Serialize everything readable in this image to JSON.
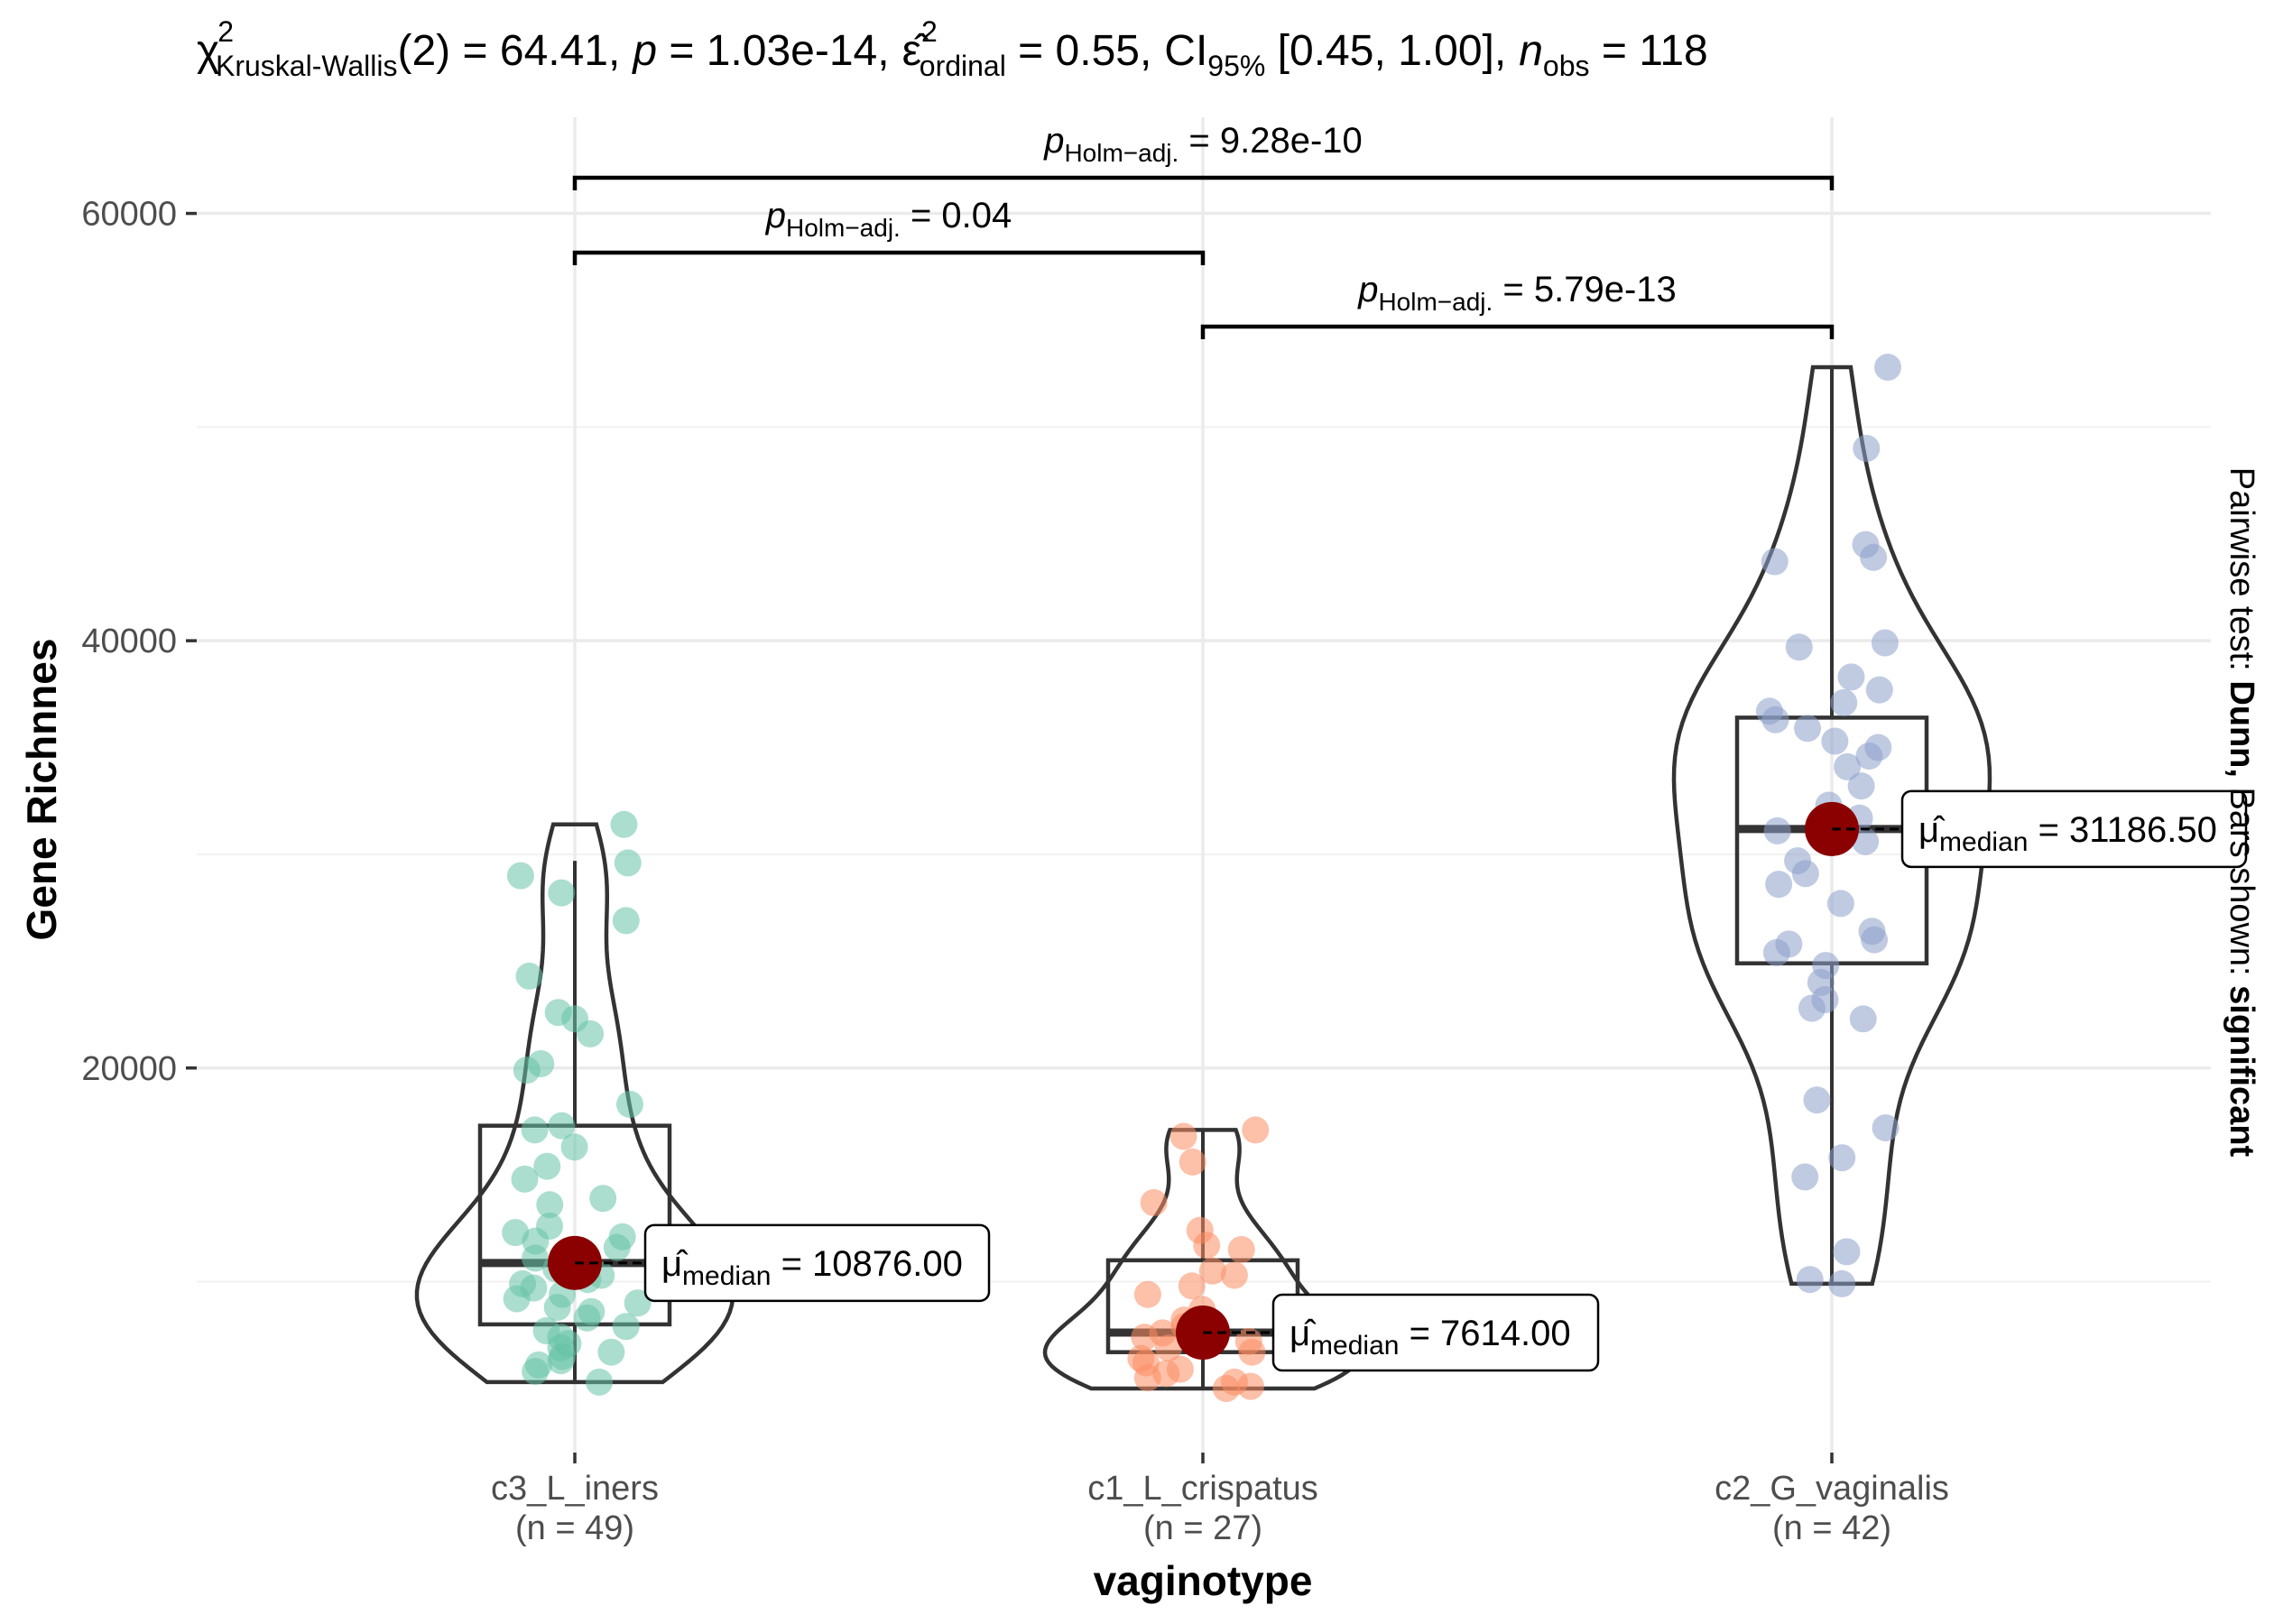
{
  "chart_data": {
    "type": "violin-box-scatter",
    "subtitle_stat": {
      "chi_symbol": "χ",
      "chi_sup": "2",
      "chi_sub": "Kruskal-Wallis",
      "df_text": "(2) = 64.41,",
      "p_symbol": "p",
      "p_text": " = 1.03e-14,",
      "eps_symbol": "ε̂",
      "eps_sup": "2",
      "eps_sub": "ordinal",
      "eps_text": " = 0.55,",
      "ci_symbol": "CI",
      "ci_sub": "95%",
      "ci_text": " [0.45, 1.00],",
      "n_symbol": "n",
      "n_sub": "obs",
      "n_text": " = 118"
    },
    "xlabel": "vaginotype",
    "ylabel": "Gene Richnnes",
    "right_caption": {
      "prefix": "Pairwise test: ",
      "test": "Dunn,",
      "middle": " Bars shown: ",
      "shown": "significant"
    },
    "ylim": [
      2000,
      64500
    ],
    "yticks": [
      20000,
      40000,
      60000
    ],
    "ytick_labels": [
      "20000",
      "40000",
      "60000"
    ],
    "categories": [
      "c3_L_iners",
      "c1_L_crispatus",
      "c2_G_vaginalis"
    ],
    "category_n": [
      "(n = 49)",
      "(n = 27)",
      "(n = 42)"
    ],
    "colors": [
      "#66c2a5",
      "#fc8d62",
      "#8da0cb"
    ],
    "median_point_color": "#8b0000",
    "groups": [
      {
        "name": "c3_L_iners",
        "n": 49,
        "median": 10876,
        "median_label_prefix": "μ̂",
        "median_label_sub": "median",
        "median_label_value": " = 10876.00",
        "box": {
          "q1": 8000,
          "median": 10876,
          "q3": 17300,
          "whisker_low": 5300,
          "whisker_high": 29700
        },
        "violin": {
          "min": 5300,
          "max": 31400
        },
        "points": [
          31400,
          29600,
          29000,
          28200,
          26900,
          24300,
          22600,
          22300,
          21600,
          20200,
          19900,
          18300,
          17300,
          17100,
          16300,
          15400,
          14800,
          13900,
          13600,
          12600,
          12300,
          12100,
          11900,
          11600,
          11300,
          11100,
          10800,
          10600,
          10300,
          10100,
          9900,
          9700,
          9400,
          9200,
          9000,
          8800,
          8600,
          8300,
          7900,
          7700,
          7400,
          7100,
          6900,
          6700,
          6500,
          6300,
          6100,
          5800,
          5300
        ]
      },
      {
        "name": "c1_L_crispatus",
        "n": 27,
        "median": 7614,
        "median_label_prefix": "μ̂",
        "median_label_sub": "median",
        "median_label_value": " = 7614.00",
        "box": {
          "q1": 6700,
          "median": 7614,
          "q3": 11000,
          "whisker_low": 5000,
          "whisker_high": 17100
        },
        "violin": {
          "min": 5000,
          "max": 17100
        },
        "points": [
          17100,
          16800,
          15600,
          13700,
          12400,
          11700,
          11500,
          10500,
          10300,
          9800,
          9400,
          8700,
          8200,
          7900,
          7600,
          7400,
          7200,
          6900,
          6700,
          6400,
          6200,
          5900,
          5700,
          5500,
          5300,
          5100,
          5000
        ]
      },
      {
        "name": "c2_G_vaginalis",
        "n": 42,
        "median": 31186.5,
        "median_label_prefix": "μ̂",
        "median_label_sub": "median",
        "median_label_value": " = 31186.50",
        "box": {
          "q1": 24900,
          "median": 31186.5,
          "q3": 36400,
          "whisker_low": 9900,
          "whisker_high": 52800
        },
        "violin": {
          "min": 9900,
          "max": 52800
        },
        "points": [
          52800,
          49000,
          44500,
          43900,
          43700,
          39900,
          39700,
          38300,
          37700,
          37100,
          36700,
          36300,
          35900,
          35300,
          35000,
          34600,
          34100,
          33200,
          32300,
          31700,
          31100,
          30600,
          29700,
          29100,
          28600,
          27700,
          26400,
          26000,
          25800,
          25400,
          24800,
          24000,
          23200,
          22800,
          22300,
          18500,
          17200,
          15800,
          14900,
          11400,
          10100,
          9900
        ]
      }
    ],
    "comparisons": [
      {
        "from": 0,
        "to": 2,
        "level": 2,
        "label_sym": "p",
        "label_sub": "Holm−adj.",
        "label_value": " = 9.28e-10"
      },
      {
        "from": 0,
        "to": 1,
        "level": 1,
        "label_sym": "p",
        "label_sub": "Holm−adj.",
        "label_value": " = 0.04"
      },
      {
        "from": 1,
        "to": 2,
        "level": 0,
        "label_sym": "p",
        "label_sub": "Holm−adj.",
        "label_value": " = 5.79e-13"
      }
    ]
  }
}
